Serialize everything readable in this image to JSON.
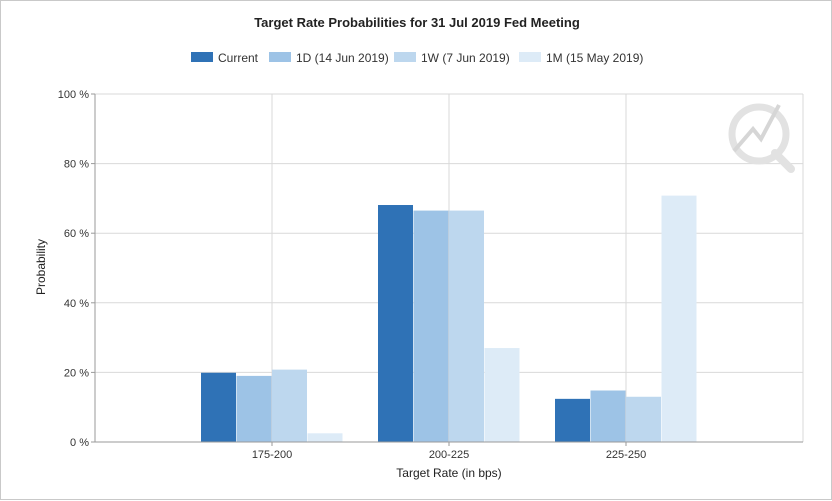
{
  "chart_data": {
    "type": "bar",
    "title": "Target Rate Probabilities for 31 Jul 2019 Fed Meeting",
    "xlabel": "Target Rate (in bps)",
    "ylabel": "Probability",
    "categories": [
      "175-200",
      "200-225",
      "225-250"
    ],
    "ylim": [
      0,
      100
    ],
    "yticks": [
      0,
      20,
      40,
      60,
      80,
      100
    ],
    "ytick_labels": [
      "0 %",
      "20 %",
      "40 %",
      "60 %",
      "80 %",
      "100 %"
    ],
    "grid": true,
    "legend_position": "top-center",
    "series": [
      {
        "name": "Current",
        "color": "#2f72b6",
        "values": [
          19.9,
          68.1,
          12.4
        ]
      },
      {
        "name": "1D (14 Jun 2019)",
        "color": "#9dc3e6",
        "values": [
          19.0,
          66.5,
          14.8
        ]
      },
      {
        "name": "1W (7 Jun 2019)",
        "color": "#bdd7ee",
        "values": [
          20.8,
          66.5,
          13.0
        ]
      },
      {
        "name": "1M (15 May 2019)",
        "color": "#ddebf7",
        "values": [
          2.5,
          27.0,
          70.8
        ]
      }
    ]
  },
  "watermark_icon": "quikstrike-logo-icon"
}
